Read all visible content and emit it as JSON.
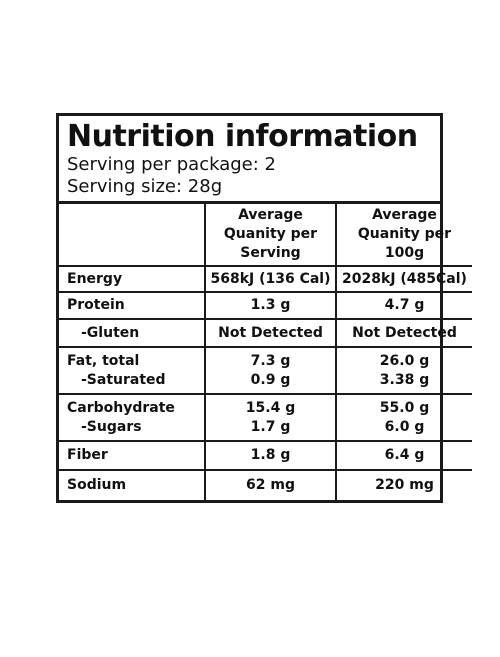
{
  "header": {
    "title": "Nutrition information",
    "lines": [
      "Serving per package: 2",
      "Serving size: 28g"
    ]
  },
  "table": {
    "columns": [
      [],
      [
        "Average",
        "Quanity per",
        "Serving"
      ],
      [
        "Average",
        "Quanity per",
        "100g"
      ]
    ],
    "rows": [
      [
        [
          "Energy"
        ],
        [
          "568kJ (136 Cal)"
        ],
        [
          "2028kJ (485Cal)"
        ]
      ],
      [
        [
          "Protein"
        ],
        [
          "1.3 g"
        ],
        [
          "4.7 g"
        ]
      ],
      [
        [
          "-Gluten"
        ],
        [
          "Not Detected"
        ],
        [
          "Not Detected"
        ]
      ],
      [
        [
          "Fat, total",
          "-Saturated"
        ],
        [
          "7.3 g",
          "0.9 g"
        ],
        [
          "26.0 g",
          "3.38 g"
        ]
      ],
      [
        [
          "Carbohydrate",
          "-Sugars"
        ],
        [
          "15.4 g",
          "1.7 g"
        ],
        [
          "55.0 g",
          "6.0 g"
        ]
      ],
      [
        [
          "Fiber"
        ],
        [
          "1.8 g"
        ],
        [
          "6.4 g"
        ]
      ],
      [
        [
          "Sodium"
        ],
        [
          "62 mg"
        ],
        [
          "220 mg"
        ]
      ]
    ]
  }
}
